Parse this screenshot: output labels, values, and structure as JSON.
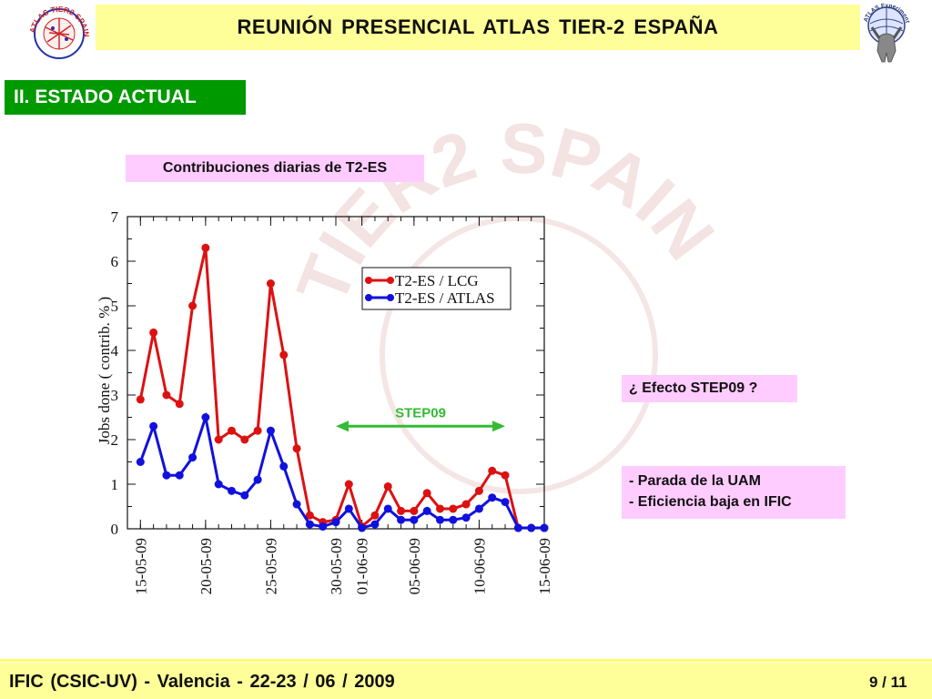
{
  "header": {
    "title": "REUNIÓN  PRESENCIAL  ATLAS  TIER-2  ESPAÑA"
  },
  "logos": {
    "left_text": "ATLAS TIER2 SPAIN",
    "right_text": "ATLAS Experiment"
  },
  "watermark_text": "TIER2 SPAIN",
  "section": {
    "label": "II. ESTADO ACTUAL"
  },
  "chart_data": {
    "type": "line",
    "title": "Contribuciones diarias de T2-ES",
    "ylabel": "Jobs done  ( contrib. % )",
    "xlabel": "",
    "ylim": [
      0,
      7
    ],
    "yticks": [
      "0",
      "1",
      "2",
      "3",
      "4",
      "5",
      "6",
      "7"
    ],
    "xlim": [
      0,
      32
    ],
    "x_ticks": [
      {
        "label": "15-05-09",
        "x": 1
      },
      {
        "label": "20-05-09",
        "x": 6
      },
      {
        "label": "25-05-09",
        "x": 11
      },
      {
        "label": "30-05-09",
        "x": 16
      },
      {
        "label": "01-06-09",
        "x": 18
      },
      {
        "label": "05-06-09",
        "x": 22
      },
      {
        "label": "10-06-09",
        "x": 27
      },
      {
        "label": "15-06-09",
        "x": 32
      }
    ],
    "series": [
      {
        "name": "T2-ES / LCG",
        "color": "#dd1111",
        "x": [
          1,
          2,
          3,
          4,
          5,
          6,
          7,
          8,
          9,
          10,
          11,
          12,
          13,
          14,
          15,
          16,
          17,
          18,
          19,
          20,
          21,
          22,
          23,
          24,
          25,
          26,
          27,
          28,
          29,
          30,
          31,
          32
        ],
        "values": [
          2.9,
          4.4,
          3.0,
          2.8,
          5.0,
          6.3,
          2.0,
          2.2,
          2.0,
          2.2,
          5.5,
          3.9,
          1.8,
          0.3,
          0.15,
          0.2,
          1.0,
          0.05,
          0.3,
          0.95,
          0.4,
          0.4,
          0.8,
          0.45,
          0.45,
          0.55,
          0.85,
          1.3,
          1.2,
          0.02,
          0.02,
          0.02
        ]
      },
      {
        "name": "T2-ES / ATLAS",
        "color": "#1111dd",
        "x": [
          1,
          2,
          3,
          4,
          5,
          6,
          7,
          8,
          9,
          10,
          11,
          12,
          13,
          14,
          15,
          16,
          17,
          18,
          19,
          20,
          21,
          22,
          23,
          24,
          25,
          26,
          27,
          28,
          29,
          30,
          31,
          32
        ],
        "values": [
          1.5,
          2.3,
          1.2,
          1.2,
          1.6,
          2.5,
          1.0,
          0.85,
          0.75,
          1.1,
          2.2,
          1.4,
          0.55,
          0.1,
          0.05,
          0.15,
          0.45,
          0.02,
          0.1,
          0.45,
          0.2,
          0.2,
          0.4,
          0.2,
          0.2,
          0.25,
          0.45,
          0.7,
          0.6,
          0.02,
          0.02,
          0.02
        ]
      }
    ],
    "annotation": {
      "label": "STEP09",
      "x_start": 16,
      "x_end": 29,
      "y": 2.3
    }
  },
  "notes": {
    "step_effect": "¿ Efecto STEP09 ?",
    "items": [
      "-  Parada de la UAM",
      "-  Eficiencia baja en IFIC"
    ]
  },
  "footer": {
    "text": "IFIC (CSIC-UV)  -  Valencia  -  22-23 / 06 / 2009",
    "page": "9 / 11"
  }
}
